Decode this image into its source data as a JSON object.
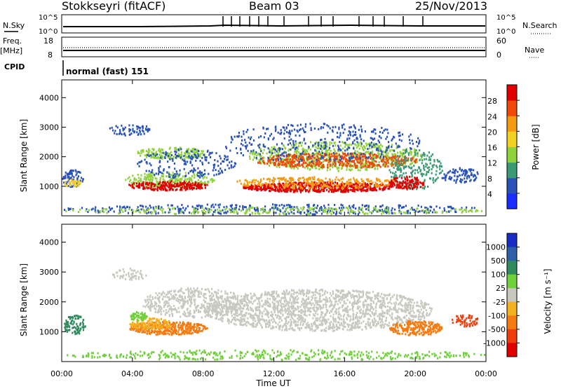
{
  "header": {
    "station": "Stokkseyri (fitACF)",
    "beam": "Beam 03",
    "date": "25/Nov/2013"
  },
  "strip_labels": {
    "nsky": "N.Sky",
    "nsky_ticks": [
      "10^5",
      "10^0"
    ],
    "nsearch": "N.Search",
    "nsearch_ticks": [
      "10^5",
      "10^0"
    ],
    "freq": "Freq.",
    "freq_unit": "[MHz]",
    "freq_ticks": [
      "18",
      "8"
    ],
    "nave": "Nave",
    "nave_ticks": [
      "60",
      "0"
    ],
    "cpid": "CPID",
    "cpid_text": "normal (fast) 151"
  },
  "chart_data": [
    {
      "type": "heatmap",
      "panel": "power",
      "ylabel": "Slant Range [km]",
      "yticks": [
        "1000",
        "2000",
        "3000",
        "4000"
      ],
      "ylim": [
        0,
        4600
      ],
      "xticks": [
        "00:00",
        "04:00",
        "08:00",
        "12:00",
        "16:00",
        "20:00",
        "00:00"
      ],
      "xlim_hours": [
        0,
        24
      ],
      "colorbar_label": "Power [dB]",
      "colorbar_ticks": [
        "4",
        "8",
        "12",
        "16",
        "20",
        "24",
        "28"
      ],
      "colorbar_colors": [
        "#1a2cff",
        "#2852b8",
        "#3a9a74",
        "#8fd23c",
        "#f0d020",
        "#f59a10",
        "#f04a08",
        "#e00000"
      ]
    },
    {
      "type": "heatmap",
      "panel": "velocity",
      "ylabel": "Slant Range [km]",
      "yticks": [
        "1000",
        "2000",
        "3000",
        "4000"
      ],
      "ylim": [
        0,
        4600
      ],
      "xticks": [
        "00:00",
        "04:00",
        "08:00",
        "12:00",
        "16:00",
        "20:00",
        "00:00"
      ],
      "xlim_hours": [
        0,
        24
      ],
      "xlabel": "Time UT",
      "colorbar_label": "Velocity [m s⁻¹]",
      "colorbar_ticks": [
        "1000",
        "500",
        "100",
        "25",
        "-25",
        "-100",
        "-500",
        "-1000"
      ],
      "colorbar_colors": [
        "#1a2cc8",
        "#2f5fa8",
        "#2f8a5e",
        "#6fd03a",
        "#c8c8c0",
        "#f5b020",
        "#f57a10",
        "#f03c08",
        "#e00000"
      ]
    }
  ]
}
